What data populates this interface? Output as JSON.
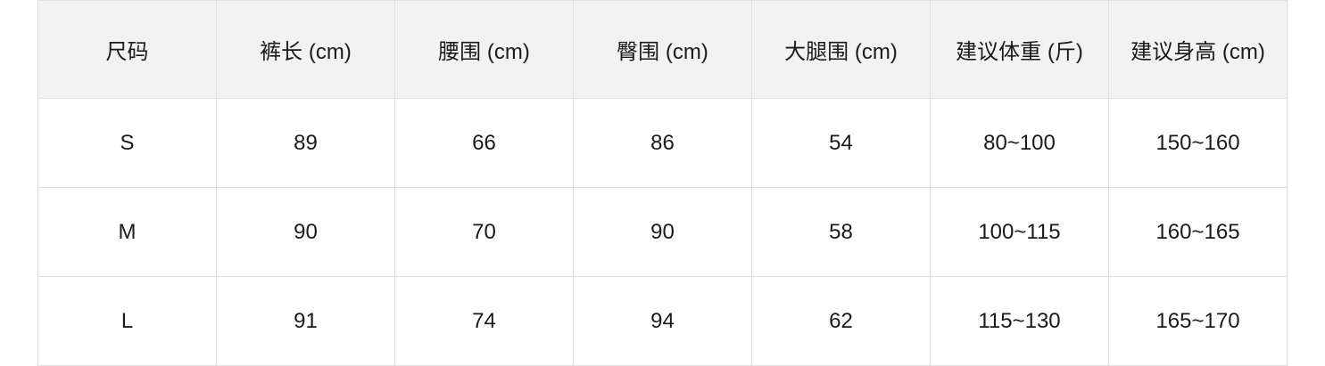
{
  "size_table": {
    "headers": [
      "尺码",
      "裤长 (cm)",
      "腰围 (cm)",
      "臀围 (cm)",
      "大腿围 (cm)",
      "建议体重 (斤)",
      "建议身高 (cm)"
    ],
    "rows": [
      [
        "S",
        "89",
        "66",
        "86",
        "54",
        "80~100",
        "150~160"
      ],
      [
        "M",
        "90",
        "70",
        "90",
        "58",
        "100~115",
        "160~165"
      ],
      [
        "L",
        "91",
        "74",
        "94",
        "62",
        "115~130",
        "165~170"
      ]
    ],
    "header_bg": "#f2f2f2",
    "border_color": "#e0e0e0"
  }
}
